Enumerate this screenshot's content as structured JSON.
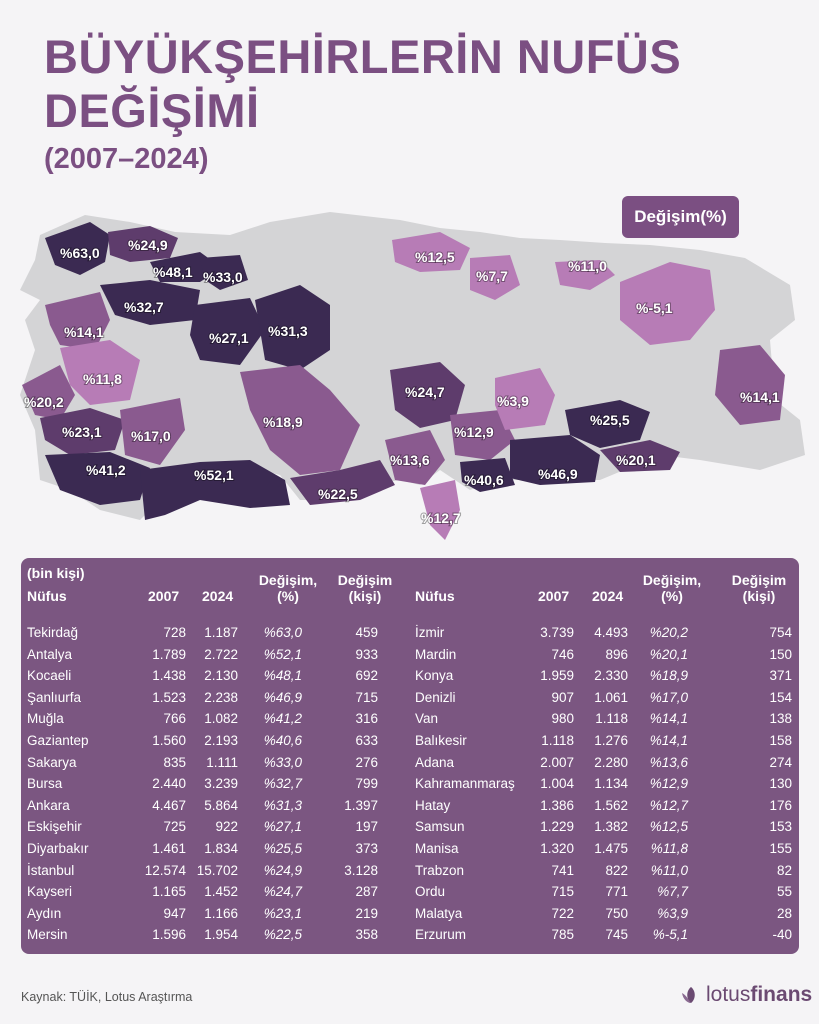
{
  "header": {
    "title": "BÜYÜKŞEHİRLERİN NUFÜS DEĞİŞİMİ",
    "subtitle": "(2007–2024)"
  },
  "legend": {
    "label": "Değişim(%)"
  },
  "map_labels": [
    "%63,0",
    "%24,9",
    "%48,1",
    "%33,0",
    "%32,7",
    "%14,1",
    "%11,8",
    "%20,2",
    "%23,1",
    "%17,0",
    "%41,2",
    "%52,1",
    "%27,1",
    "%31,3",
    "%18,9",
    "%22,5",
    "%12,5",
    "%7,7",
    "%11,0",
    "%-5,1",
    "%24,7",
    "%3,9",
    "%12,9",
    "%13,6",
    "%25,5",
    "%20,1",
    "%46,9",
    "%40,6",
    "%12,7",
    "%14,1"
  ],
  "table": {
    "unit_note": "(bin kişi)",
    "headers": {
      "name": "Nüfus",
      "y2007": "2007",
      "y2024": "2024",
      "pct_line1": "Değişim,",
      "pct_line2": "(%)",
      "abs_line1": "Değişim",
      "abs_line2": "(kişi)"
    },
    "left": [
      [
        "Tekirdağ",
        "728",
        "1.187",
        "%63,0",
        "459"
      ],
      [
        "Antalya",
        "1.789",
        "2.722",
        "%52,1",
        "933"
      ],
      [
        "Kocaeli",
        "1.438",
        "2.130",
        "%48,1",
        "692"
      ],
      [
        "Şanlıurfa",
        "1.523",
        "2.238",
        "%46,9",
        "715"
      ],
      [
        "Muğla",
        "766",
        "1.082",
        "%41,2",
        "316"
      ],
      [
        "Gaziantep",
        "1.560",
        "2.193",
        "%40,6",
        "633"
      ],
      [
        "Sakarya",
        "835",
        "1.111",
        "%33,0",
        "276"
      ],
      [
        "Bursa",
        "2.440",
        "3.239",
        "%32,7",
        "799"
      ],
      [
        "Ankara",
        "4.467",
        "5.864",
        "%31,3",
        "1.397"
      ],
      [
        "Eskişehir",
        "725",
        "922",
        "%27,1",
        "197"
      ],
      [
        "Diyarbakır",
        "1.461",
        "1.834",
        "%25,5",
        "373"
      ],
      [
        "İstanbul",
        "12.574",
        "15.702",
        "%24,9",
        "3.128"
      ],
      [
        "Kayseri",
        "1.165",
        "1.452",
        "%24,7",
        "287"
      ],
      [
        "Aydın",
        "947",
        "1.166",
        "%23,1",
        "219"
      ],
      [
        "Mersin",
        "1.596",
        "1.954",
        "%22,5",
        "358"
      ]
    ],
    "right": [
      [
        "İzmir",
        "3.739",
        "4.493",
        "%20,2",
        "754"
      ],
      [
        "Mardin",
        "746",
        "896",
        "%20,1",
        "150"
      ],
      [
        "Konya",
        "1.959",
        "2.330",
        "%18,9",
        "371"
      ],
      [
        "Denizli",
        "907",
        "1.061",
        "%17,0",
        "154"
      ],
      [
        "Van",
        "980",
        "1.118",
        "%14,1",
        "138"
      ],
      [
        "Balıkesir",
        "1.118",
        "1.276",
        "%14,1",
        "158"
      ],
      [
        "Adana",
        "2.007",
        "2.280",
        "%13,6",
        "274"
      ],
      [
        "Kahramanmaraş",
        "1.004",
        "1.134",
        "%12,9",
        "130"
      ],
      [
        "Hatay",
        "1.386",
        "1.562",
        "%12,7",
        "176"
      ],
      [
        "Samsun",
        "1.229",
        "1.382",
        "%12,5",
        "153"
      ],
      [
        "Manisa",
        "1.320",
        "1.475",
        "%11,8",
        "155"
      ],
      [
        "Trabzon",
        "741",
        "822",
        "%11,0",
        "82"
      ],
      [
        "Ordu",
        "715",
        "771",
        "%7,7",
        "55"
      ],
      [
        "Malatya",
        "722",
        "750",
        "%3,9",
        "28"
      ],
      [
        "Erzurum",
        "785",
        "745",
        "%-5,1",
        "-40"
      ]
    ]
  },
  "footer": {
    "source": "Kaynak: TÜİK, Lotus Araştırma",
    "logo_light": "lotus",
    "logo_bold": "finans"
  },
  "colors": {
    "accent": "#7b4f82",
    "table_bg": "#7b5681",
    "dark": "#3b2a52",
    "mid_dark": "#5e3c6c",
    "mid": "#8a5a8f",
    "light": "#b77cb6",
    "gray": "#d4d4d6"
  }
}
